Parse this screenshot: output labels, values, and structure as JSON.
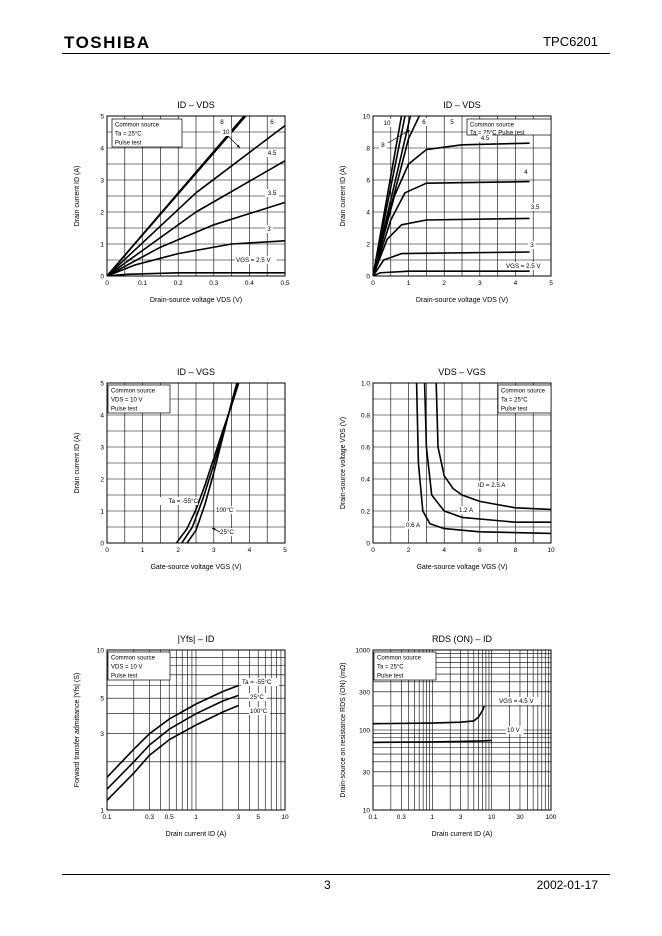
{
  "header": {
    "logo": "TOSHIBA",
    "part_number": "TPC6201"
  },
  "footer": {
    "page_number": "3",
    "date": "2002-01-17"
  },
  "chart_data": [
    {
      "id": "c1",
      "type": "line",
      "title": "ID – VDS",
      "xlabel": "Drain-source voltage   VDS   (V)",
      "ylabel": "Drain current   ID   (A)",
      "xlim": [
        0,
        0.5
      ],
      "ylim": [
        0,
        5
      ],
      "xscale": "linear",
      "yscale": "linear",
      "xticks": [
        0,
        0.1,
        0.2,
        0.3,
        0.4,
        0.5
      ],
      "yticks": [
        0,
        1,
        2,
        3,
        4,
        5
      ],
      "xtick_labels": [
        "0",
        "0.1",
        "0.2",
        "0.3",
        "0.4",
        "0.5"
      ],
      "ytick_labels": [
        "0",
        "1",
        "2",
        "3",
        "4",
        "5"
      ],
      "conditions": [
        "Common source",
        "Ta = 25°C",
        "Pulse test"
      ],
      "series": [
        {
          "name": "10",
          "points": [
            [
              0,
              0
            ],
            [
              0.385,
              5
            ]
          ]
        },
        {
          "name": "8",
          "points": [
            [
              0,
              0
            ],
            [
              0.39,
              5
            ]
          ]
        },
        {
          "name": "6",
          "points": [
            [
              0,
              0
            ],
            [
              0.25,
              2.6
            ],
            [
              0.5,
              4.7
            ]
          ]
        },
        {
          "name": "4.5",
          "points": [
            [
              0,
              0
            ],
            [
              0.25,
              2.0
            ],
            [
              0.5,
              3.6
            ]
          ]
        },
        {
          "name": "3.5",
          "points": [
            [
              0,
              0
            ],
            [
              0.15,
              0.9
            ],
            [
              0.3,
              1.6
            ],
            [
              0.5,
              2.3
            ]
          ]
        },
        {
          "name": "3",
          "points": [
            [
              0,
              0
            ],
            [
              0.08,
              0.35
            ],
            [
              0.2,
              0.7
            ],
            [
              0.35,
              1.0
            ],
            [
              0.5,
              1.1
            ]
          ]
        },
        {
          "name": "VGS = 2.5 V",
          "points": [
            [
              0,
              0
            ],
            [
              0.05,
              0.05
            ],
            [
              0.2,
              0.1
            ],
            [
              0.5,
              0.1
            ]
          ]
        }
      ],
      "annotations": [
        "8",
        "10",
        "6",
        "4.5",
        "3.5",
        "3",
        "VGS = 2.5 V"
      ]
    },
    {
      "id": "c2",
      "type": "line",
      "title": "ID – VDS",
      "xlabel": "Drain-source voltage   VDS   (V)",
      "ylabel": "Drain current   ID   (A)",
      "xlim": [
        0,
        5
      ],
      "ylim": [
        0,
        10
      ],
      "xscale": "linear",
      "yscale": "linear",
      "xticks": [
        0,
        1,
        2,
        3,
        4,
        5
      ],
      "yticks": [
        0,
        2,
        4,
        6,
        8,
        10
      ],
      "xtick_labels": [
        "0",
        "1",
        "2",
        "3",
        "4",
        "5"
      ],
      "ytick_labels": [
        "0",
        "2",
        "4",
        "6",
        "8",
        "10"
      ],
      "conditions": [
        "Common source",
        "Ta = 25°C   Pulse test"
      ],
      "series": [
        {
          "name": "10",
          "points": [
            [
              0,
              0
            ],
            [
              0.8,
              10
            ]
          ]
        },
        {
          "name": "8",
          "points": [
            [
              0,
              0
            ],
            [
              0.9,
              10
            ]
          ]
        },
        {
          "name": "6",
          "points": [
            [
              0,
              0
            ],
            [
              1.05,
              10
            ]
          ]
        },
        {
          "name": "5",
          "points": [
            [
              0,
              0
            ],
            [
              1.0,
              8.6
            ],
            [
              1.3,
              10
            ]
          ]
        },
        {
          "name": "4.5",
          "points": [
            [
              0,
              0
            ],
            [
              0.6,
              5
            ],
            [
              1,
              7
            ],
            [
              1.5,
              7.9
            ],
            [
              2.5,
              8.2
            ],
            [
              4.4,
              8.3
            ]
          ]
        },
        {
          "name": "4",
          "points": [
            [
              0,
              0
            ],
            [
              0.5,
              3.5
            ],
            [
              0.9,
              5.2
            ],
            [
              1.5,
              5.8
            ],
            [
              4.4,
              5.9
            ]
          ]
        },
        {
          "name": "3.5",
          "points": [
            [
              0,
              0
            ],
            [
              0.4,
              2.3
            ],
            [
              0.8,
              3.2
            ],
            [
              1.5,
              3.5
            ],
            [
              4.4,
              3.6
            ]
          ]
        },
        {
          "name": "3",
          "points": [
            [
              0,
              0
            ],
            [
              0.3,
              1.0
            ],
            [
              0.8,
              1.4
            ],
            [
              4.4,
              1.5
            ]
          ]
        },
        {
          "name": "VGS = 2.5 V",
          "points": [
            [
              0,
              0
            ],
            [
              0.2,
              0.2
            ],
            [
              1,
              0.3
            ],
            [
              4.4,
              0.3
            ]
          ]
        }
      ],
      "annotations": [
        "10",
        "8",
        "6",
        "5",
        "4.5",
        "4",
        "3.5",
        "3",
        "VGS = 2.5 V"
      ]
    },
    {
      "id": "c3",
      "type": "line",
      "title": "ID – VGS",
      "xlabel": "Gate-source voltage   VGS   (V)",
      "ylabel": "Drain current   ID   (A)",
      "xlim": [
        0,
        5
      ],
      "ylim": [
        0,
        5
      ],
      "xscale": "linear",
      "yscale": "linear",
      "xticks": [
        0,
        1,
        2,
        3,
        4,
        5
      ],
      "yticks": [
        0,
        1,
        2,
        3,
        4,
        5
      ],
      "xtick_labels": [
        "0",
        "1",
        "2",
        "3",
        "4",
        "5"
      ],
      "ytick_labels": [
        "0",
        "1",
        "2",
        "3",
        "4",
        "5"
      ],
      "conditions": [
        "Common source",
        "VDS = 10 V",
        "Pulse test"
      ],
      "series": [
        {
          "name": "Ta = -55°C",
          "points": [
            [
              2.25,
              0
            ],
            [
              2.5,
              0.4
            ],
            [
              2.75,
              1.2
            ],
            [
              3.0,
              2.2
            ],
            [
              3.25,
              3.3
            ],
            [
              3.5,
              4.4
            ],
            [
              3.65,
              5
            ]
          ]
        },
        {
          "name": "100°C",
          "points": [
            [
              1.95,
              0
            ],
            [
              2.25,
              0.45
            ],
            [
              2.5,
              1.05
            ],
            [
              2.75,
              1.8
            ],
            [
              3.0,
              2.65
            ],
            [
              3.25,
              3.5
            ],
            [
              3.5,
              4.3
            ],
            [
              3.7,
              5
            ]
          ]
        },
        {
          "name": "25°C",
          "points": [
            [
              2.1,
              0
            ],
            [
              2.4,
              0.5
            ],
            [
              2.7,
              1.4
            ],
            [
              3.0,
              2.45
            ],
            [
              3.25,
              3.4
            ],
            [
              3.5,
              4.35
            ],
            [
              3.68,
              5
            ]
          ]
        }
      ],
      "annotations": [
        "Ta = -55°C",
        "100°C",
        "25°C"
      ]
    },
    {
      "id": "c4",
      "type": "line",
      "title": "VDS – VGS",
      "xlabel": "Gate-source voltage   VGS   (V)",
      "ylabel": "Drain-source voltage   VDS   (V)",
      "xlim": [
        0,
        10
      ],
      "ylim": [
        0,
        1.0
      ],
      "xscale": "linear",
      "yscale": "linear",
      "xticks": [
        0,
        2,
        4,
        6,
        8,
        10
      ],
      "yticks": [
        0,
        0.2,
        0.4,
        0.6,
        0.8,
        1.0
      ],
      "xtick_labels": [
        "0",
        "2",
        "4",
        "6",
        "8",
        "10"
      ],
      "ytick_labels": [
        "0",
        "0.2",
        "0.4",
        "0.6",
        "0.8",
        "1.0"
      ],
      "conditions": [
        "Common source",
        "Ta = 25°C",
        "Pulse test"
      ],
      "series": [
        {
          "name": "ID = 2.5 A",
          "points": [
            [
              3.55,
              1.0
            ],
            [
              3.65,
              0.6
            ],
            [
              4,
              0.42
            ],
            [
              4.5,
              0.34
            ],
            [
              5,
              0.3
            ],
            [
              6,
              0.26
            ],
            [
              7,
              0.24
            ],
            [
              8,
              0.22
            ],
            [
              10,
              0.21
            ]
          ]
        },
        {
          "name": "1.2 A",
          "points": [
            [
              2.9,
              1.0
            ],
            [
              3.0,
              0.6
            ],
            [
              3.3,
              0.3
            ],
            [
              4,
              0.2
            ],
            [
              5,
              0.16
            ],
            [
              6,
              0.15
            ],
            [
              8,
              0.13
            ],
            [
              10,
              0.13
            ]
          ]
        },
        {
          "name": "0.6 A",
          "points": [
            [
              2.45,
              1.0
            ],
            [
              2.55,
              0.5
            ],
            [
              2.8,
              0.2
            ],
            [
              3.2,
              0.12
            ],
            [
              4,
              0.09
            ],
            [
              6,
              0.07
            ],
            [
              10,
              0.06
            ]
          ]
        }
      ],
      "annotations": [
        "ID = 2.5 A",
        "1.2 A",
        "0.6 A"
      ]
    },
    {
      "id": "c5",
      "type": "line",
      "title": "|Yfs| – ID",
      "xlabel": "Drain current   ID   (A)",
      "ylabel": "Forward transfer admittance   |Yfs|   (S)",
      "xlim": [
        0.1,
        10
      ],
      "ylim": [
        1,
        10
      ],
      "xscale": "log",
      "yscale": "log",
      "xticks": [
        0.1,
        0.3,
        0.5,
        1,
        3,
        5,
        10
      ],
      "yticks": [
        1,
        3,
        5,
        10
      ],
      "xtick_labels": [
        "0.1",
        "0.3",
        "0.5",
        "1",
        "3",
        "5",
        "10"
      ],
      "ytick_labels": [
        "1",
        "3",
        "5",
        "10"
      ],
      "conditions": [
        "Common source",
        "VDS = 10 V",
        "Pulse test"
      ],
      "series": [
        {
          "name": "Ta = -55°C",
          "points": [
            [
              0.1,
              1.6
            ],
            [
              0.2,
              2.4
            ],
            [
              0.3,
              3.0
            ],
            [
              0.5,
              3.7
            ],
            [
              1,
              4.6
            ],
            [
              2,
              5.5
            ],
            [
              3,
              6.0
            ]
          ]
        },
        {
          "name": "25°C",
          "points": [
            [
              0.1,
              1.35
            ],
            [
              0.2,
              2.0
            ],
            [
              0.3,
              2.55
            ],
            [
              0.5,
              3.2
            ],
            [
              1,
              4.0
            ],
            [
              2,
              4.8
            ],
            [
              3,
              5.2
            ]
          ]
        },
        {
          "name": "100°C",
          "points": [
            [
              0.1,
              1.15
            ],
            [
              0.2,
              1.7
            ],
            [
              0.3,
              2.2
            ],
            [
              0.5,
              2.75
            ],
            [
              1,
              3.4
            ],
            [
              2,
              4.1
            ],
            [
              3,
              4.5
            ]
          ]
        }
      ],
      "annotations": [
        "Ta = -55°C",
        "25°C",
        "100°C"
      ]
    },
    {
      "id": "c6",
      "type": "line",
      "title": "RDS (ON) – ID",
      "xlabel": "Drain current   ID   (A)",
      "ylabel": "Drain-source on resistance RDS (ON)   (mΩ)",
      "xlim": [
        0.1,
        100
      ],
      "ylim": [
        10,
        1000
      ],
      "xscale": "log",
      "yscale": "log",
      "xticks": [
        0.1,
        0.3,
        1,
        3,
        10,
        30,
        100
      ],
      "yticks": [
        10,
        30,
        100,
        300,
        1000
      ],
      "xtick_labels": [
        "0.1",
        "0.3",
        "1",
        "3",
        "10",
        "30",
        "100"
      ],
      "ytick_labels": [
        "10",
        "30",
        "100",
        "300",
        "1000"
      ],
      "conditions": [
        "Common source",
        "Ta = 25°C",
        "Pulse test"
      ],
      "series": [
        {
          "name": "VGS = 4.5 V",
          "points": [
            [
              0.1,
              120
            ],
            [
              1,
              122
            ],
            [
              3,
              125
            ],
            [
              5,
              130
            ],
            [
              6,
              145
            ],
            [
              7,
              175
            ],
            [
              7.5,
              200
            ]
          ]
        },
        {
          "name": "10 V",
          "points": [
            [
              0.1,
              70
            ],
            [
              1,
              71
            ],
            [
              3,
              72
            ],
            [
              7,
              73
            ],
            [
              10,
              74
            ]
          ]
        }
      ],
      "annotations": [
        "VGS = 4.5 V",
        "10 V"
      ]
    }
  ]
}
